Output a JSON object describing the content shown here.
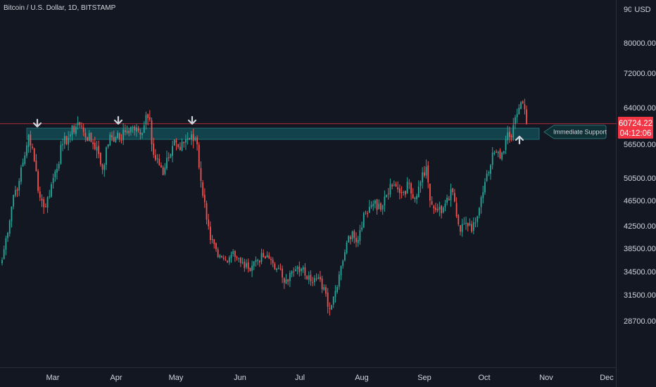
{
  "chart_data": {
    "type": "candlestick",
    "title": "Bitcoin / U.S. Dollar, 1D, BITSTAMP",
    "currency": "USD",
    "y_ticks": [
      28700,
      31500,
      34500,
      38500,
      42500,
      46500,
      50500,
      56500,
      64000,
      72000,
      80000
    ],
    "y_tick_labels": [
      "28700.00",
      "31500.00",
      "34500.00",
      "38500.00",
      "42500.00",
      "46500.00",
      "50500.00",
      "56500.00",
      "64000.00",
      "72000.00",
      "80000.00"
    ],
    "y_top_label": "90",
    "x_ticks": [
      "Mar",
      "Apr",
      "May",
      "Jun",
      "Jul",
      "Aug",
      "Sep",
      "Oct",
      "Nov",
      "Dec"
    ],
    "last_price_label": "60724.22",
    "countdown_label": "04:12:06",
    "support_zone": {
      "low": 57500,
      "high": 59800
    },
    "annotation_text": "Immediate Support",
    "close_anchors": [
      {
        "day": 0,
        "close": 36500
      },
      {
        "day": 6,
        "close": 47500
      },
      {
        "day": 9,
        "close": 50000
      },
      {
        "day": 12,
        "close": 54500
      },
      {
        "day": 14,
        "close": 58500
      },
      {
        "day": 17,
        "close": 53500
      },
      {
        "day": 20,
        "close": 47000
      },
      {
        "day": 23,
        "close": 45500
      },
      {
        "day": 27,
        "close": 50500
      },
      {
        "day": 32,
        "close": 56500
      },
      {
        "day": 36,
        "close": 58500
      },
      {
        "day": 40,
        "close": 61000
      },
      {
        "day": 43,
        "close": 59000
      },
      {
        "day": 47,
        "close": 57000
      },
      {
        "day": 50,
        "close": 56000
      },
      {
        "day": 53,
        "close": 52000
      },
      {
        "day": 57,
        "close": 58500
      },
      {
        "day": 60,
        "close": 58000
      },
      {
        "day": 62,
        "close": 57500
      },
      {
        "day": 65,
        "close": 59000
      },
      {
        "day": 69,
        "close": 60000
      },
      {
        "day": 73,
        "close": 58500
      },
      {
        "day": 76,
        "close": 62500
      },
      {
        "day": 78,
        "close": 61500
      },
      {
        "day": 79,
        "close": 56500
      },
      {
        "day": 82,
        "close": 54000
      },
      {
        "day": 85,
        "close": 51000
      },
      {
        "day": 88,
        "close": 54000
      },
      {
        "day": 91,
        "close": 57500
      },
      {
        "day": 94,
        "close": 55500
      },
      {
        "day": 97,
        "close": 57500
      },
      {
        "day": 100,
        "close": 58500
      },
      {
        "day": 103,
        "close": 56500
      },
      {
        "day": 105,
        "close": 50000
      },
      {
        "day": 108,
        "close": 43500
      },
      {
        "day": 110,
        "close": 40000
      },
      {
        "day": 114,
        "close": 37000
      },
      {
        "day": 118,
        "close": 36500
      },
      {
        "day": 122,
        "close": 38000
      },
      {
        "day": 126,
        "close": 36000
      },
      {
        "day": 130,
        "close": 35000
      },
      {
        "day": 134,
        "close": 36500
      },
      {
        "day": 138,
        "close": 37000
      },
      {
        "day": 142,
        "close": 36500
      },
      {
        "day": 145,
        "close": 35000
      },
      {
        "day": 150,
        "close": 33500
      },
      {
        "day": 154,
        "close": 34500
      },
      {
        "day": 158,
        "close": 35000
      },
      {
        "day": 162,
        "close": 34000
      },
      {
        "day": 166,
        "close": 33500
      },
      {
        "day": 170,
        "close": 32500
      },
      {
        "day": 173,
        "close": 30000
      },
      {
        "day": 176,
        "close": 32000
      },
      {
        "day": 179,
        "close": 35500
      },
      {
        "day": 182,
        "close": 39500
      },
      {
        "day": 185,
        "close": 41500
      },
      {
        "day": 188,
        "close": 40000
      },
      {
        "day": 191,
        "close": 44500
      },
      {
        "day": 194,
        "close": 45500
      },
      {
        "day": 197,
        "close": 46500
      },
      {
        "day": 200,
        "close": 45000
      },
      {
        "day": 203,
        "close": 47500
      },
      {
        "day": 206,
        "close": 49000
      },
      {
        "day": 209,
        "close": 48500
      },
      {
        "day": 212,
        "close": 48000
      },
      {
        "day": 215,
        "close": 49500
      },
      {
        "day": 218,
        "close": 47000
      },
      {
        "day": 220,
        "close": 49000
      },
      {
        "day": 222,
        "close": 51500
      },
      {
        "day": 224,
        "close": 52500
      },
      {
        "day": 226,
        "close": 46500
      },
      {
        "day": 229,
        "close": 45000
      },
      {
        "day": 232,
        "close": 44500
      },
      {
        "day": 235,
        "close": 47000
      },
      {
        "day": 238,
        "close": 48000
      },
      {
        "day": 240,
        "close": 44000
      },
      {
        "day": 242,
        "close": 41500
      },
      {
        "day": 245,
        "close": 43000
      },
      {
        "day": 248,
        "close": 41500
      },
      {
        "day": 251,
        "close": 44000
      },
      {
        "day": 254,
        "close": 48000
      },
      {
        "day": 257,
        "close": 51500
      },
      {
        "day": 260,
        "close": 55000
      },
      {
        "day": 263,
        "close": 54000
      },
      {
        "day": 266,
        "close": 57500
      },
      {
        "day": 269,
        "close": 58000
      },
      {
        "day": 271,
        "close": 62000
      },
      {
        "day": 273,
        "close": 64000
      },
      {
        "day": 275,
        "close": 65000
      },
      {
        "day": 277,
        "close": 60724
      }
    ]
  }
}
